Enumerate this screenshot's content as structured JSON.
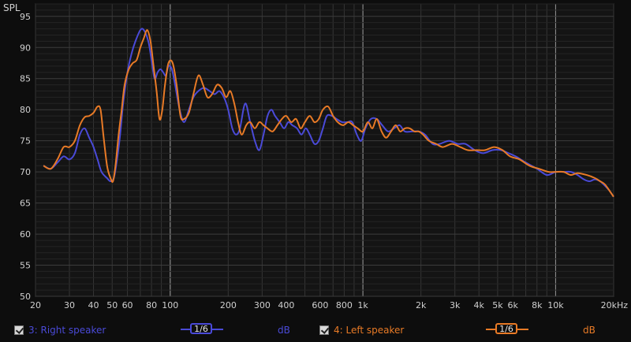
{
  "chart_data": {
    "type": "line",
    "ylabel": "SPL",
    "x_scale": "log",
    "xlim": [
      20,
      20000
    ],
    "ylim": [
      50,
      97
    ],
    "x_ticks": [
      {
        "v": 20,
        "l": "20"
      },
      {
        "v": 30,
        "l": "30"
      },
      {
        "v": 40,
        "l": "40"
      },
      {
        "v": 50,
        "l": "50"
      },
      {
        "v": 60,
        "l": "60"
      },
      {
        "v": 80,
        "l": "80"
      },
      {
        "v": 100,
        "l": "100"
      },
      {
        "v": 200,
        "l": "200"
      },
      {
        "v": 300,
        "l": "300"
      },
      {
        "v": 400,
        "l": "400"
      },
      {
        "v": 600,
        "l": "600"
      },
      {
        "v": 800,
        "l": "800"
      },
      {
        "v": 1000,
        "l": "1k"
      },
      {
        "v": 2000,
        "l": "2k"
      },
      {
        "v": 3000,
        "l": "3k"
      },
      {
        "v": 4000,
        "l": "4k"
      },
      {
        "v": 5000,
        "l": "5k"
      },
      {
        "v": 6000,
        "l": "6k"
      },
      {
        "v": 8000,
        "l": "8k"
      },
      {
        "v": 10000,
        "l": "10k"
      },
      {
        "v": 20000,
        "l": "20kHz"
      }
    ],
    "y_ticks": [
      50,
      55,
      60,
      65,
      70,
      75,
      80,
      85,
      90,
      95
    ],
    "grid": true,
    "series": [
      {
        "name": "3: Right speaker",
        "color": "#4a4ad8",
        "points": [
          [
            22,
            71
          ],
          [
            24,
            70.5
          ],
          [
            26,
            71.5
          ],
          [
            28,
            72.5
          ],
          [
            30,
            72
          ],
          [
            32,
            73
          ],
          [
            34,
            76
          ],
          [
            36,
            77
          ],
          [
            38,
            75.5
          ],
          [
            40,
            74
          ],
          [
            42,
            72
          ],
          [
            44,
            70
          ],
          [
            47,
            69
          ],
          [
            49,
            68.5
          ],
          [
            51,
            69
          ],
          [
            53,
            72
          ],
          [
            55,
            76
          ],
          [
            57,
            81
          ],
          [
            60,
            86
          ],
          [
            63,
            89
          ],
          [
            66,
            91
          ],
          [
            70,
            92.8
          ],
          [
            73,
            92.8
          ],
          [
            77,
            91
          ],
          [
            80,
            88
          ],
          [
            83,
            85
          ],
          [
            86,
            86
          ],
          [
            89,
            86.5
          ],
          [
            92,
            86
          ],
          [
            95,
            85.5
          ],
          [
            98,
            87
          ],
          [
            102,
            86.5
          ],
          [
            106,
            84
          ],
          [
            112,
            80
          ],
          [
            118,
            78
          ],
          [
            125,
            80
          ],
          [
            132,
            82
          ],
          [
            140,
            83
          ],
          [
            150,
            83.5
          ],
          [
            160,
            83
          ],
          [
            170,
            82.5
          ],
          [
            180,
            83
          ],
          [
            190,
            82
          ],
          [
            200,
            80
          ],
          [
            210,
            77
          ],
          [
            220,
            76
          ],
          [
            230,
            77
          ],
          [
            245,
            81
          ],
          [
            260,
            78
          ],
          [
            275,
            75
          ],
          [
            290,
            73.5
          ],
          [
            305,
            76
          ],
          [
            320,
            79
          ],
          [
            335,
            80
          ],
          [
            350,
            79
          ],
          [
            370,
            78
          ],
          [
            390,
            77
          ],
          [
            410,
            78
          ],
          [
            430,
            77.5
          ],
          [
            455,
            77
          ],
          [
            480,
            76
          ],
          [
            505,
            77
          ],
          [
            530,
            76
          ],
          [
            560,
            74.5
          ],
          [
            590,
            75
          ],
          [
            620,
            77
          ],
          [
            650,
            79
          ],
          [
            690,
            79
          ],
          [
            730,
            78.5
          ],
          [
            780,
            78
          ],
          [
            830,
            78
          ],
          [
            880,
            78
          ],
          [
            930,
            76
          ],
          [
            980,
            75
          ],
          [
            1030,
            77
          ],
          [
            1100,
            78.5
          ],
          [
            1180,
            78.5
          ],
          [
            1260,
            77.5
          ],
          [
            1350,
            76.5
          ],
          [
            1450,
            77
          ],
          [
            1550,
            77.5
          ],
          [
            1650,
            76.5
          ],
          [
            1800,
            76.5
          ],
          [
            1950,
            76.5
          ],
          [
            2100,
            76
          ],
          [
            2300,
            74.5
          ],
          [
            2500,
            74.5
          ],
          [
            2800,
            75
          ],
          [
            3100,
            74.5
          ],
          [
            3400,
            74.5
          ],
          [
            3800,
            73.5
          ],
          [
            4200,
            73
          ],
          [
            4700,
            73.5
          ],
          [
            5200,
            73.5
          ],
          [
            5700,
            73
          ],
          [
            6200,
            72.5
          ],
          [
            7000,
            71.5
          ],
          [
            8000,
            70.5
          ],
          [
            9000,
            69.5
          ],
          [
            10000,
            70
          ],
          [
            11000,
            70
          ],
          [
            12000,
            70
          ],
          [
            13000,
            69.5
          ],
          [
            14000,
            68.8
          ],
          [
            15000,
            68.5
          ],
          [
            16000,
            68.8
          ],
          [
            17000,
            68.5
          ],
          [
            18000,
            67.8
          ],
          [
            19000,
            67
          ],
          [
            20000,
            66
          ]
        ]
      },
      {
        "name": "4: Left speaker",
        "color": "#e87a26",
        "points": [
          [
            22,
            71
          ],
          [
            24,
            70.5
          ],
          [
            26,
            72
          ],
          [
            28,
            74
          ],
          [
            30,
            74
          ],
          [
            32,
            75
          ],
          [
            34,
            77.5
          ],
          [
            36,
            78.8
          ],
          [
            38,
            79
          ],
          [
            40,
            79.5
          ],
          [
            42,
            80.5
          ],
          [
            43.5,
            80
          ],
          [
            45,
            76
          ],
          [
            47,
            71
          ],
          [
            49,
            69
          ],
          [
            50.5,
            68.5
          ],
          [
            52,
            71
          ],
          [
            54,
            76
          ],
          [
            56,
            80
          ],
          [
            58,
            84
          ],
          [
            61,
            86.5
          ],
          [
            64,
            87.5
          ],
          [
            67,
            88
          ],
          [
            70,
            90
          ],
          [
            73,
            91.5
          ],
          [
            76,
            92.8
          ],
          [
            79,
            91
          ],
          [
            82,
            87
          ],
          [
            85,
            83
          ],
          [
            88,
            78.5
          ],
          [
            91,
            80
          ],
          [
            94,
            84
          ],
          [
            98,
            87.5
          ],
          [
            103,
            87.5
          ],
          [
            108,
            84
          ],
          [
            113,
            79
          ],
          [
            118,
            78.5
          ],
          [
            125,
            79.5
          ],
          [
            132,
            82.5
          ],
          [
            140,
            85.5
          ],
          [
            148,
            84
          ],
          [
            156,
            82
          ],
          [
            165,
            82.5
          ],
          [
            175,
            84
          ],
          [
            185,
            83.5
          ],
          [
            195,
            82
          ],
          [
            205,
            83
          ],
          [
            215,
            81
          ],
          [
            225,
            78
          ],
          [
            235,
            76
          ],
          [
            248,
            77.5
          ],
          [
            260,
            78
          ],
          [
            275,
            77
          ],
          [
            290,
            78
          ],
          [
            305,
            77.5
          ],
          [
            320,
            77
          ],
          [
            340,
            76.5
          ],
          [
            360,
            77.5
          ],
          [
            380,
            78.5
          ],
          [
            400,
            79
          ],
          [
            425,
            78
          ],
          [
            450,
            78.5
          ],
          [
            475,
            77
          ],
          [
            500,
            78
          ],
          [
            530,
            79
          ],
          [
            560,
            78
          ],
          [
            590,
            78.5
          ],
          [
            620,
            80
          ],
          [
            660,
            80.5
          ],
          [
            700,
            79
          ],
          [
            740,
            78
          ],
          [
            790,
            77.5
          ],
          [
            840,
            78
          ],
          [
            890,
            77.5
          ],
          [
            940,
            77
          ],
          [
            1000,
            76.5
          ],
          [
            1060,
            78
          ],
          [
            1120,
            77
          ],
          [
            1180,
            78.5
          ],
          [
            1250,
            76.5
          ],
          [
            1320,
            75.5
          ],
          [
            1400,
            76.5
          ],
          [
            1480,
            77.5
          ],
          [
            1560,
            76.5
          ],
          [
            1650,
            77
          ],
          [
            1750,
            77
          ],
          [
            1850,
            76.5
          ],
          [
            1950,
            76.5
          ],
          [
            2050,
            76
          ],
          [
            2200,
            75
          ],
          [
            2400,
            74.5
          ],
          [
            2600,
            74
          ],
          [
            2900,
            74.5
          ],
          [
            3200,
            74
          ],
          [
            3500,
            73.5
          ],
          [
            3900,
            73.5
          ],
          [
            4300,
            73.5
          ],
          [
            4800,
            74
          ],
          [
            5300,
            73.5
          ],
          [
            5800,
            72.5
          ],
          [
            6500,
            72
          ],
          [
            7300,
            71
          ],
          [
            8200,
            70.5
          ],
          [
            9200,
            70
          ],
          [
            10000,
            70
          ],
          [
            11000,
            70
          ],
          [
            12000,
            69.5
          ],
          [
            13000,
            69.8
          ],
          [
            14500,
            69.5
          ],
          [
            16000,
            69
          ],
          [
            17000,
            68.5
          ],
          [
            18000,
            68
          ],
          [
            19000,
            67
          ],
          [
            20000,
            66
          ]
        ]
      }
    ]
  },
  "legend": {
    "right": {
      "label": "3: Right speaker",
      "smoothing": "1/6",
      "unit": "dB",
      "color": "#4a4ad8"
    },
    "left": {
      "label": "4: Left speaker",
      "smoothing": "1/6",
      "unit": "dB",
      "color": "#e87a26"
    }
  }
}
